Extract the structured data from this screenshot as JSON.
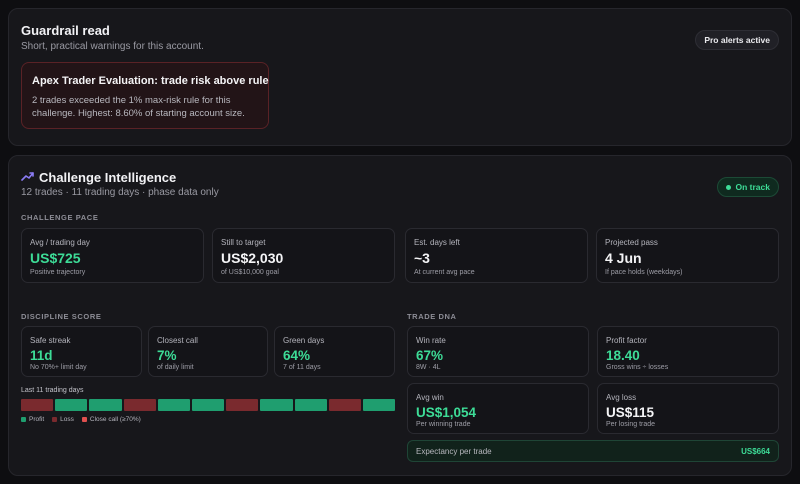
{
  "guardrail": {
    "title": "Guardrail read",
    "subtitle": "Short, practical warnings for this account.",
    "badge": "Pro alerts active",
    "alert": {
      "title": "Apex Trader Evaluation: trade risk above rule",
      "text": "2 trades exceeded the 1% max-risk rule for this challenge. Highest: 8.60% of starting account size."
    }
  },
  "challenge": {
    "title": "Challenge Intelligence",
    "subtitle": "12 trades · 11 trading days · phase data only",
    "badge": "On track",
    "pace_label": "CHALLENGE PACE",
    "pace": [
      {
        "label": "Avg / trading day",
        "value": "US$725",
        "sub": "Positive trajectory"
      },
      {
        "label": "Still to target",
        "value": "US$2,030",
        "sub": "of US$10,000 goal"
      },
      {
        "label": "Est. days left",
        "value": "~3",
        "sub": "At current avg pace"
      },
      {
        "label": "Projected pass",
        "value": "4 Jun",
        "sub": "If pace holds (weekdays)"
      }
    ],
    "discipline_label": "DISCIPLINE SCORE",
    "discipline": [
      {
        "label": "Safe streak",
        "value": "11d",
        "sub": "No 70%+ limit day"
      },
      {
        "label": "Closest call",
        "value": "7%",
        "sub": "of daily limit"
      },
      {
        "label": "Green days",
        "value": "64%",
        "sub": "7 of 11 days"
      }
    ],
    "streak_label": "Last 11 trading days",
    "streak_days": [
      "loss",
      "profit",
      "profit",
      "loss",
      "profit",
      "profit",
      "loss",
      "profit",
      "profit",
      "loss",
      "profit"
    ],
    "legend": {
      "profit": "Profit",
      "loss": "Loss",
      "close": "Close call (≥70%)"
    },
    "dna_label": "TRADE DNA",
    "dna": [
      {
        "label": "Win rate",
        "value": "67%",
        "sub": "8W · 4L"
      },
      {
        "label": "Profit factor",
        "value": "18.40",
        "sub": "Gross wins ÷ losses"
      },
      {
        "label": "Avg win",
        "value": "US$1,054",
        "sub": "Per winning trade"
      },
      {
        "label": "Avg loss",
        "value": "US$115",
        "sub": "Per losing trade"
      }
    ],
    "expectancy": {
      "label": "Expectancy per trade",
      "value": "US$664"
    }
  },
  "colors": {
    "accent_green": "#3ddc97",
    "profit": "#1f9e6f",
    "loss": "#7a2a2e",
    "close_call": "#e0504f",
    "alert_border": "#5a2226",
    "trend_icon": "#8b7cf6"
  },
  "icons": {
    "challenge_title": "trending-up-icon",
    "on_track": "status-dot-icon"
  }
}
